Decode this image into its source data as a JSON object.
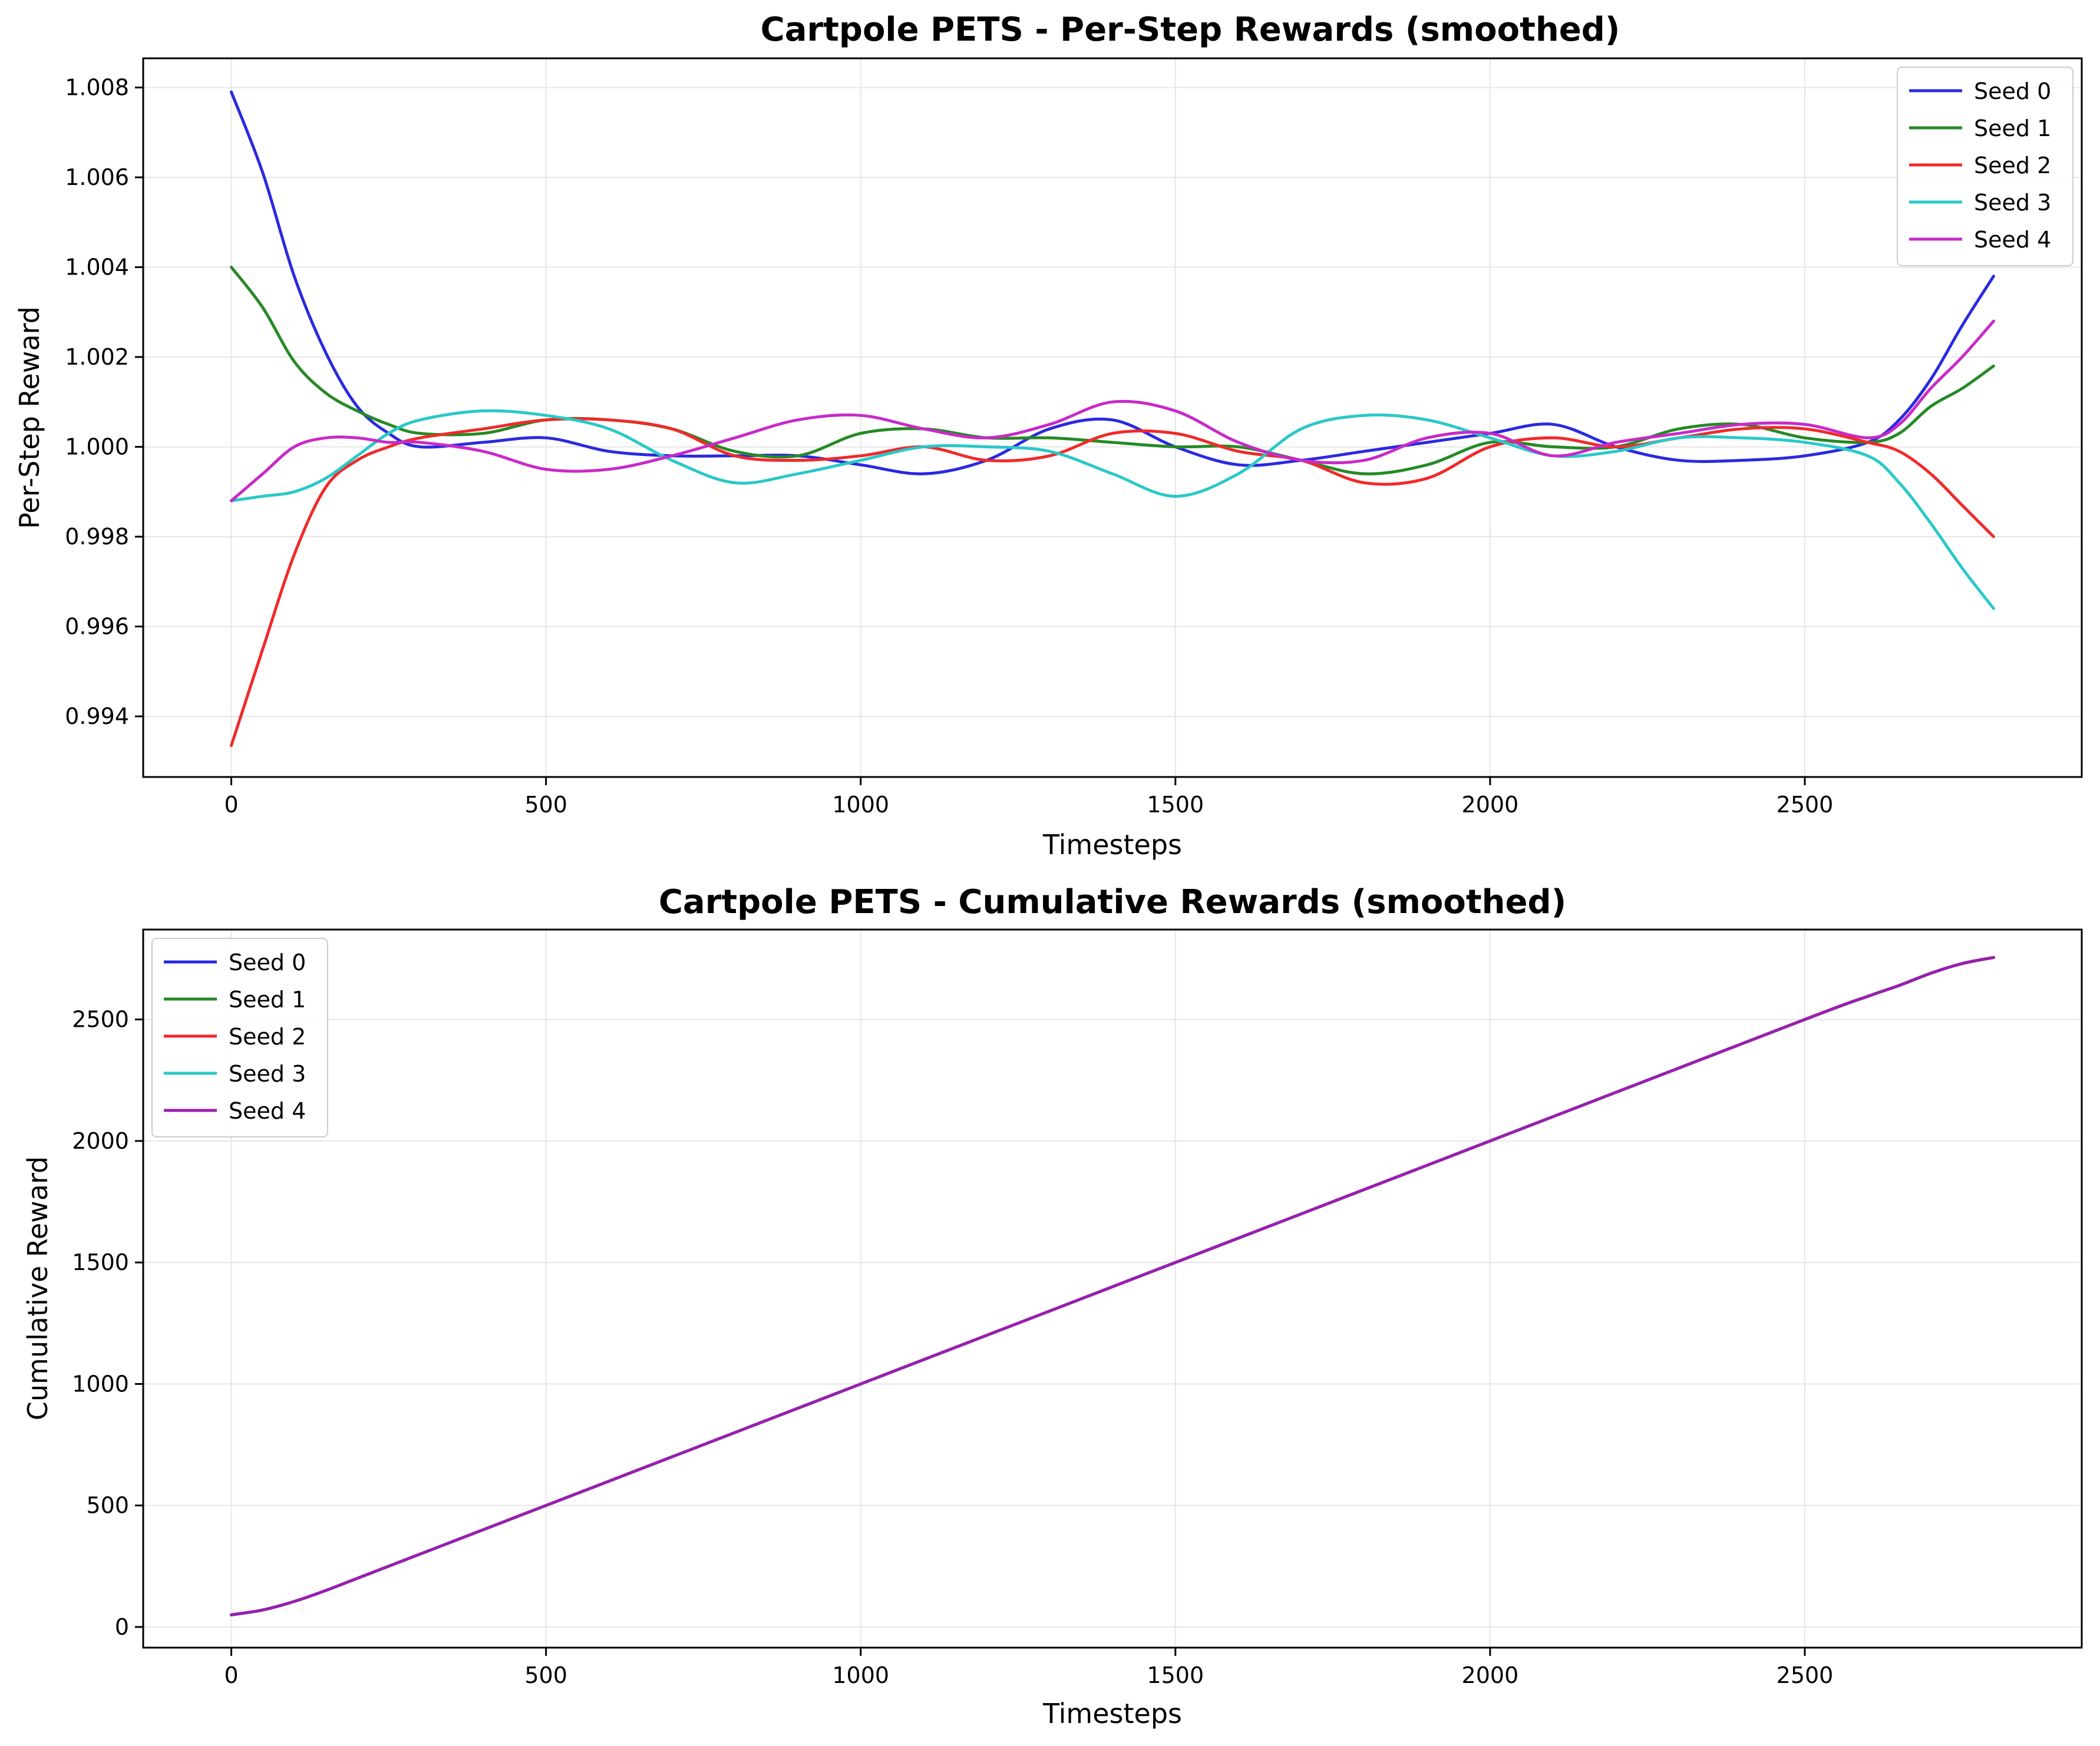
{
  "chart_data": [
    {
      "type": "line",
      "title": "Cartpole PETS - Per-Step Rewards (smoothed)",
      "xlabel": "Timesteps",
      "ylabel": "Per-Step Reward",
      "xlim": [
        -140,
        2940
      ],
      "ylim": [
        0.99265,
        1.00865
      ],
      "xticks": [
        0,
        500,
        1000,
        1500,
        2000,
        2500
      ],
      "yticks": [
        0.994,
        0.996,
        0.998,
        1.0,
        1.002,
        1.004,
        1.006,
        1.008
      ],
      "ytick_labels": [
        "0.994",
        "0.996",
        "0.998",
        "1.000",
        "1.002",
        "1.004",
        "1.006",
        "1.008"
      ],
      "grid": true,
      "legend": "upper right",
      "series": [
        {
          "name": "Seed 0",
          "color": "#2a2ae0",
          "x": [
            0,
            50,
            100,
            150,
            200,
            250,
            300,
            400,
            500,
            600,
            700,
            800,
            900,
            1000,
            1100,
            1200,
            1300,
            1400,
            1500,
            1600,
            1700,
            1800,
            1900,
            2000,
            2100,
            2200,
            2300,
            2400,
            2500,
            2600,
            2650,
            2700,
            2750,
            2800
          ],
          "y": [
            1.0079,
            1.0061,
            1.0038,
            1.0021,
            1.0009,
            1.0003,
            1.0,
            1.0001,
            1.0002,
            0.9999,
            0.9998,
            0.9998,
            0.9998,
            0.9996,
            0.9994,
            0.9997,
            1.0004,
            1.0006,
            1.0,
            0.9996,
            0.9997,
            0.9999,
            1.0001,
            1.0003,
            1.0005,
            1.0,
            0.9997,
            0.9997,
            0.9998,
            1.0001,
            1.0006,
            1.0015,
            1.0027,
            1.0038
          ]
        },
        {
          "name": "Seed 1",
          "color": "#258a25",
          "x": [
            0,
            50,
            100,
            150,
            200,
            250,
            300,
            400,
            500,
            600,
            700,
            800,
            900,
            1000,
            1100,
            1200,
            1300,
            1400,
            1500,
            1600,
            1700,
            1800,
            1900,
            2000,
            2100,
            2200,
            2300,
            2400,
            2500,
            2600,
            2650,
            2700,
            2750,
            2800
          ],
          "y": [
            1.004,
            1.0031,
            1.0019,
            1.0012,
            1.0008,
            1.0005,
            1.0003,
            1.0003,
            1.0006,
            1.0006,
            1.0004,
            0.9999,
            0.9998,
            1.0003,
            1.0004,
            1.0002,
            1.0002,
            1.0001,
            1.0,
            1.0,
            0.9997,
            0.9994,
            0.9996,
            1.0001,
            1.0,
            1.0,
            1.0004,
            1.0005,
            1.0002,
            1.0001,
            1.0003,
            1.0009,
            1.0013,
            1.0018
          ]
        },
        {
          "name": "Seed 2",
          "color": "#f02a2a",
          "x": [
            0,
            50,
            100,
            150,
            200,
            250,
            300,
            400,
            500,
            600,
            700,
            800,
            900,
            1000,
            1100,
            1200,
            1300,
            1400,
            1500,
            1600,
            1700,
            1800,
            1900,
            2000,
            2100,
            2200,
            2300,
            2400,
            2500,
            2600,
            2650,
            2700,
            2750,
            2800
          ],
          "y": [
            0.99335,
            0.9955,
            0.9976,
            0.9991,
            0.9997,
            1.0,
            1.0002,
            1.0004,
            1.0006,
            1.0006,
            1.0004,
            0.9998,
            0.9997,
            0.9998,
            1.0,
            0.9997,
            0.9998,
            1.0003,
            1.0003,
            0.9999,
            0.9997,
            0.9992,
            0.9993,
            1.0,
            1.0002,
            1.0,
            1.0002,
            1.0004,
            1.0004,
            1.0001,
            0.9999,
            0.9994,
            0.9987,
            0.998
          ]
        },
        {
          "name": "Seed 3",
          "color": "#2ac8c8",
          "x": [
            0,
            50,
            100,
            150,
            200,
            250,
            300,
            400,
            500,
            600,
            700,
            800,
            900,
            1000,
            1100,
            1200,
            1300,
            1400,
            1500,
            1600,
            1700,
            1800,
            1900,
            2000,
            2100,
            2200,
            2300,
            2400,
            2500,
            2600,
            2650,
            2700,
            2750,
            2800
          ],
          "y": [
            0.9988,
            0.9989,
            0.999,
            0.9993,
            0.9998,
            1.0003,
            1.0006,
            1.0008,
            1.0007,
            1.0004,
            0.9997,
            0.9992,
            0.9994,
            0.9997,
            1.0,
            1.0,
            0.9999,
            0.9994,
            0.9989,
            0.9994,
            1.0004,
            1.0007,
            1.0006,
            1.0002,
            0.9998,
            0.9999,
            1.0002,
            1.0002,
            1.0001,
            0.9998,
            0.9992,
            0.9983,
            0.9973,
            0.9964
          ]
        },
        {
          "name": "Seed 4",
          "color": "#c82ac8",
          "x": [
            0,
            50,
            100,
            150,
            200,
            250,
            300,
            400,
            500,
            600,
            700,
            800,
            900,
            1000,
            1100,
            1200,
            1300,
            1400,
            1500,
            1600,
            1700,
            1800,
            1900,
            2000,
            2100,
            2200,
            2300,
            2400,
            2500,
            2600,
            2650,
            2700,
            2750,
            2800
          ],
          "y": [
            0.9988,
            0.9994,
            1.0,
            1.0002,
            1.0002,
            1.0001,
            1.0001,
            0.9999,
            0.9995,
            0.9995,
            0.9998,
            1.0002,
            1.0006,
            1.0007,
            1.0004,
            1.0002,
            1.0005,
            1.001,
            1.0008,
            1.0001,
            0.9997,
            0.9997,
            1.0002,
            1.0003,
            0.9998,
            1.0001,
            1.0003,
            1.0005,
            1.0005,
            1.0002,
            1.0005,
            1.0013,
            1.002,
            1.0028
          ]
        }
      ]
    },
    {
      "type": "line",
      "title": "Cartpole PETS - Cumulative Rewards (smoothed)",
      "xlabel": "Timesteps",
      "ylabel": "Cumulative Reward",
      "xlim": [
        -140,
        2940
      ],
      "ylim": [
        -85,
        2870
      ],
      "xticks": [
        0,
        500,
        1000,
        1500,
        2000,
        2500
      ],
      "yticks": [
        0,
        500,
        1000,
        1500,
        2000,
        2500
      ],
      "ytick_labels": [
        "0",
        "500",
        "1000",
        "1500",
        "2000",
        "2500"
      ],
      "grid": true,
      "legend": "upper left",
      "series": [
        {
          "name": "Seed 0",
          "color": "#2a2ae0",
          "x": [
            0,
            50,
            100,
            150,
            200,
            300,
            400,
            500,
            1000,
            1500,
            2000,
            2500,
            2600,
            2650,
            2700,
            2750,
            2800
          ],
          "y": [
            50,
            70,
            105,
            150,
            200,
            300,
            400,
            500,
            1000,
            1500,
            2000,
            2500,
            2595,
            2640,
            2690,
            2730,
            2755
          ]
        },
        {
          "name": "Seed 1",
          "color": "#258a25",
          "x": [
            0,
            50,
            100,
            150,
            200,
            300,
            400,
            500,
            1000,
            1500,
            2000,
            2500,
            2600,
            2650,
            2700,
            2750,
            2800
          ],
          "y": [
            50,
            70,
            105,
            150,
            200,
            300,
            400,
            500,
            1000,
            1500,
            2000,
            2500,
            2595,
            2640,
            2690,
            2730,
            2755
          ]
        },
        {
          "name": "Seed 2",
          "color": "#f02a2a",
          "x": [
            0,
            50,
            100,
            150,
            200,
            300,
            400,
            500,
            1000,
            1500,
            2000,
            2500,
            2600,
            2650,
            2700,
            2750,
            2800
          ],
          "y": [
            50,
            70,
            105,
            150,
            200,
            300,
            400,
            500,
            1000,
            1500,
            2000,
            2500,
            2595,
            2640,
            2690,
            2730,
            2755
          ]
        },
        {
          "name": "Seed 3",
          "color": "#2ac8c8",
          "x": [
            0,
            50,
            100,
            150,
            200,
            300,
            400,
            500,
            1000,
            1500,
            2000,
            2500,
            2600,
            2650,
            2700,
            2750,
            2800
          ],
          "y": [
            50,
            70,
            105,
            150,
            200,
            300,
            400,
            500,
            1000,
            1500,
            2000,
            2500,
            2595,
            2640,
            2690,
            2730,
            2755
          ]
        },
        {
          "name": "Seed 4",
          "color": "#9a1eb0",
          "x": [
            0,
            50,
            100,
            150,
            200,
            300,
            400,
            500,
            1000,
            1500,
            2000,
            2500,
            2600,
            2650,
            2700,
            2750,
            2800
          ],
          "y": [
            50,
            70,
            105,
            150,
            200,
            300,
            400,
            500,
            1000,
            1500,
            2000,
            2500,
            2595,
            2640,
            2690,
            2730,
            2755
          ]
        }
      ]
    }
  ]
}
